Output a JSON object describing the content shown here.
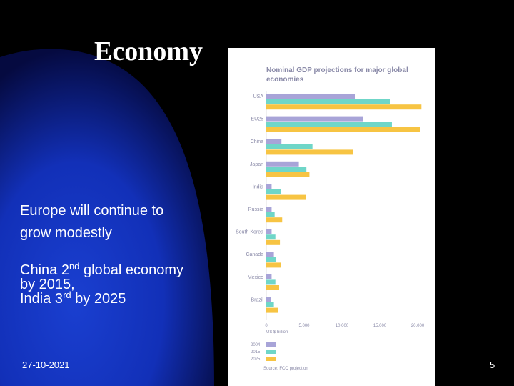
{
  "slide": {
    "title": "Economy",
    "bullet1": "Europe will continue to grow modestly",
    "bullet2": {
      "line1_a": "China 2",
      "line1_sup": "nd",
      "line1_b": " global economy by 2015,",
      "line2_a": "India 3",
      "line2_sup": "rd",
      "line2_b": " by 2025"
    },
    "date": "27-10-2021",
    "page_number": "5"
  },
  "colors": {
    "background": "#000000",
    "gradient_blue": "#1a3fd0",
    "series_2004": "#a8a4d8",
    "series_2015": "#6fd6c8",
    "series_2025": "#f7c443",
    "chart_text": "#8a8aa8"
  },
  "chart_data": {
    "type": "bar",
    "orientation": "horizontal",
    "title": "Nominal GDP projections for major global economies",
    "xlabel": "US $ billion",
    "source": "Source: FCO projection",
    "categories": [
      "USA",
      "EU25",
      "China",
      "Japan",
      "India",
      "Russia",
      "South Korea",
      "Canada",
      "Mexico",
      "Brazil"
    ],
    "x_ticks": [
      "0",
      "5,000",
      "10,000",
      "15,000",
      "20,000"
    ],
    "xlim": [
      0,
      20000
    ],
    "series": [
      {
        "name": "2004",
        "values": [
          11700,
          12800,
          2000,
          4300,
          700,
          700,
          700,
          1000,
          700,
          600
        ]
      },
      {
        "name": "2015",
        "values": [
          16400,
          16600,
          6100,
          5300,
          1900,
          1100,
          1200,
          1300,
          1200,
          1000
        ]
      },
      {
        "name": "2025",
        "values": [
          20500,
          20300,
          11500,
          5700,
          5200,
          2100,
          1800,
          1900,
          1700,
          1600
        ]
      }
    ],
    "legend_placement": "bottom-left",
    "grid": false
  }
}
